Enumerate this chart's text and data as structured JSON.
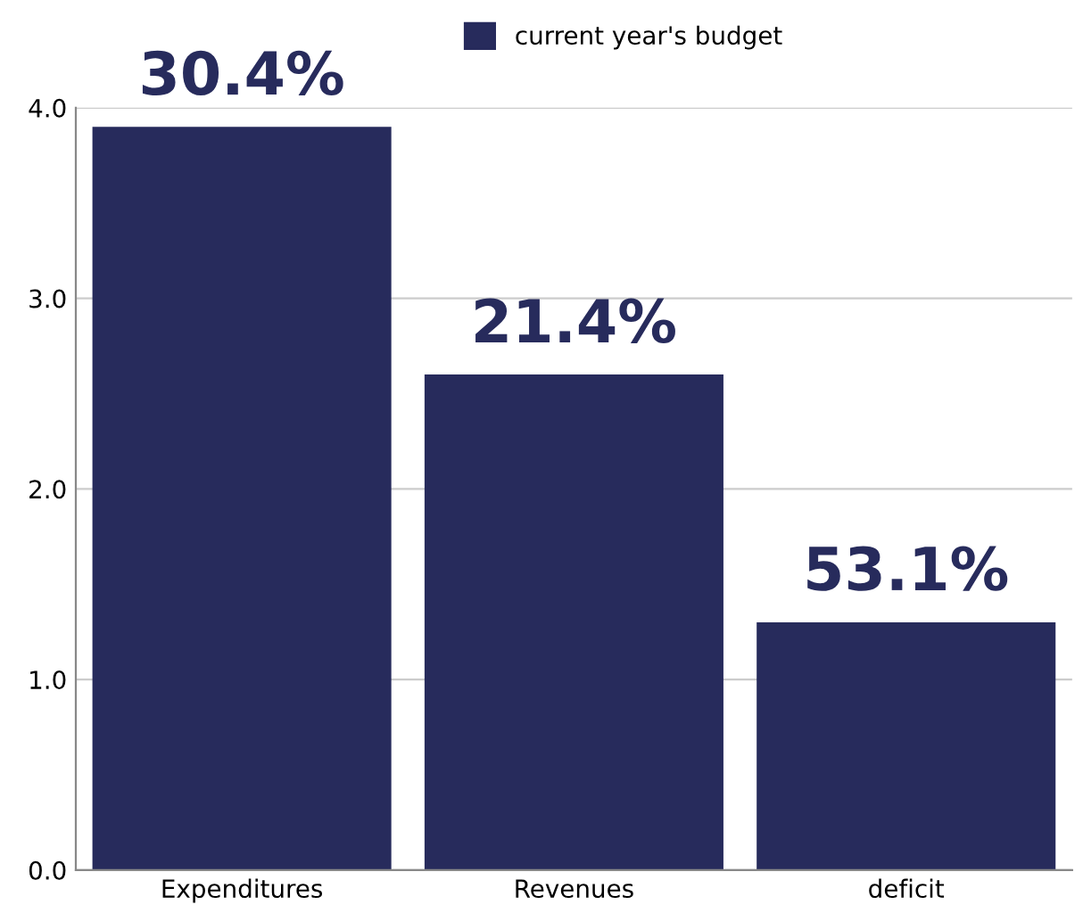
{
  "chart_data": {
    "type": "bar",
    "categories": [
      "Expenditures",
      "Revenues",
      "deficit"
    ],
    "series": [
      {
        "name": "current year's budget",
        "color": "#272b5c",
        "values": [
          3.9,
          2.6,
          1.3
        ]
      }
    ],
    "annotations": [
      {
        "text": "30.4%",
        "x": "Expenditures",
        "y": 3.9
      },
      {
        "text": "21.4%",
        "x": "Revenues",
        "y": 2.6
      },
      {
        "text": "53.1%",
        "x": "deficit",
        "y": 1.3
      }
    ],
    "ylim": [
      0,
      4
    ],
    "yticks": [
      {
        "value": 0,
        "label": "0.0"
      },
      {
        "value": 1,
        "label": "1.0"
      },
      {
        "value": 2,
        "label": "2.0"
      },
      {
        "value": 3,
        "label": "3.0"
      },
      {
        "value": 4,
        "label": "4.0"
      }
    ],
    "grid": "y",
    "legend": "top"
  }
}
